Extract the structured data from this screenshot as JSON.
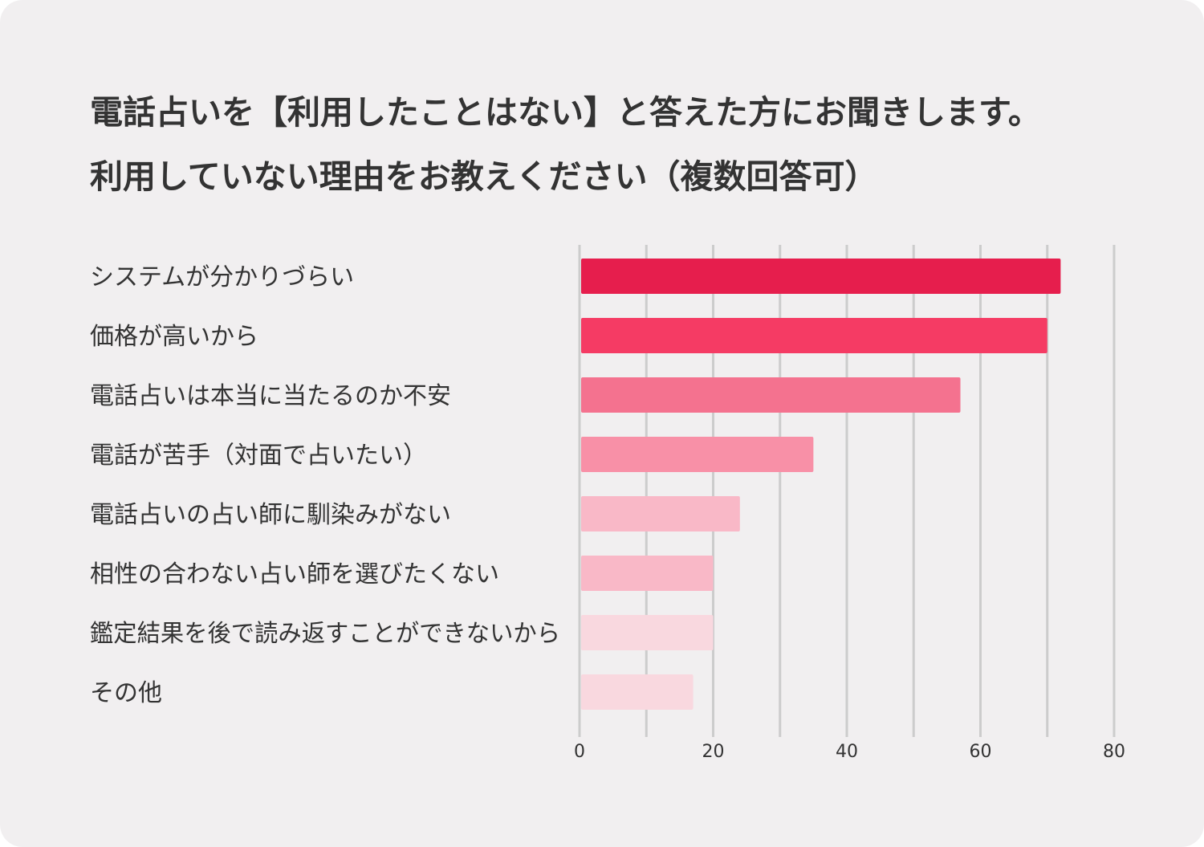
{
  "header": {
    "title_line1": "電話占いを【利用したことはない】と答えた方にお聞きします。",
    "title_line2": "利用していない理由をお教えください（複数回答可）"
  },
  "chart_data": {
    "type": "bar",
    "orientation": "horizontal",
    "categories": [
      "システムが分かりづらい",
      "価格が高いから",
      "電話占いは本当に当たるのか不安",
      "電話が苦手（対面で占いたい）",
      "電話占いの占い師に馴染みがない",
      "相性の合わない占い師を選びたくない",
      "鑑定結果を後で読み返すことができないから",
      "その他"
    ],
    "values": [
      72,
      70,
      57,
      35,
      24,
      20,
      20,
      17
    ],
    "colors": [
      "#e61e4d",
      "#f53b64",
      "#f4728f",
      "#f890a7",
      "#f9b8c7",
      "#f9b8c7",
      "#f9d8df",
      "#f9d8df"
    ],
    "xlim": [
      0,
      80
    ],
    "xticks": [
      "0",
      "20",
      "40",
      "60",
      "80"
    ],
    "grid": true,
    "grid_color": "#cccccc",
    "legend": false
  }
}
